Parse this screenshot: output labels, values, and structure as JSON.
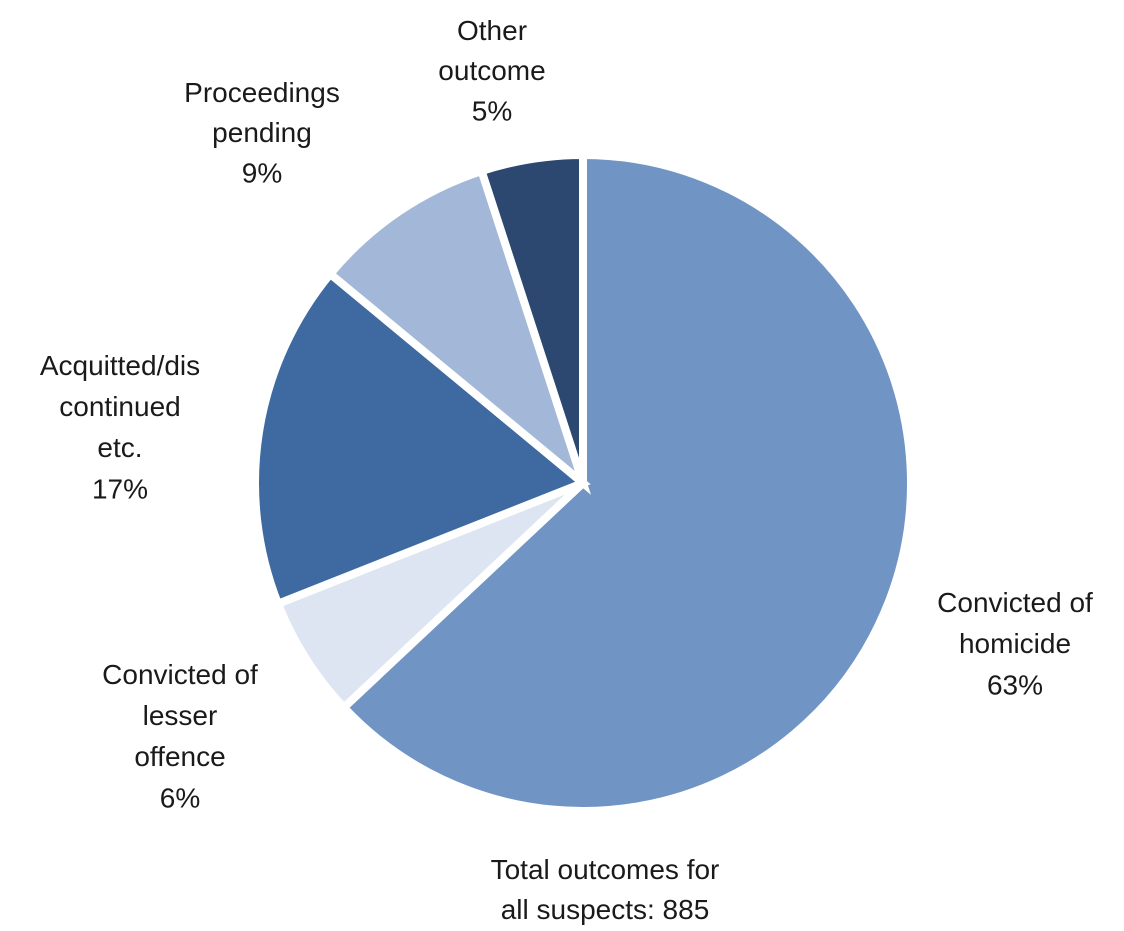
{
  "chart_data": {
    "type": "pie",
    "categories": [
      "Convicted of\nhomicide",
      "Convicted of\nlesser\noffence",
      "Acquitted/dis\ncontinued\netc.",
      "Proceedings\npending",
      "Other\noutcome"
    ],
    "values": [
      63,
      6,
      17,
      9,
      5
    ],
    "value_labels": [
      "63%",
      "6%",
      "17%",
      "9%",
      "5%"
    ],
    "colors": [
      "#7094c4",
      "#dce5f1",
      "#3f6aa1",
      "#a3b8d8",
      "#2c4870"
    ],
    "annotation": "Total outcomes for\nall suspects: 885"
  }
}
